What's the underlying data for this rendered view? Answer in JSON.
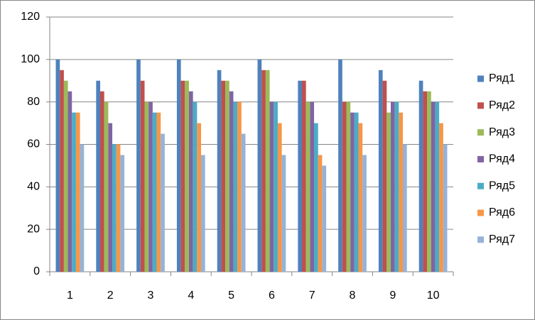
{
  "chart_data": {
    "type": "bar",
    "categories": [
      "1",
      "2",
      "3",
      "4",
      "5",
      "6",
      "7",
      "8",
      "9",
      "10"
    ],
    "series": [
      {
        "name": "Ряд1",
        "color": "#4f81bd",
        "values": [
          100,
          90,
          100,
          100,
          95,
          100,
          90,
          100,
          95,
          90
        ]
      },
      {
        "name": "Ряд2",
        "color": "#c0504d",
        "values": [
          95,
          85,
          90,
          90,
          90,
          95,
          90,
          80,
          90,
          85
        ]
      },
      {
        "name": "Ряд3",
        "color": "#9bbb59",
        "values": [
          90,
          80,
          80,
          90,
          90,
          95,
          80,
          80,
          75,
          85
        ]
      },
      {
        "name": "Ряд4",
        "color": "#8064a2",
        "values": [
          85,
          70,
          80,
          85,
          85,
          80,
          80,
          75,
          80,
          80
        ]
      },
      {
        "name": "Ряд5",
        "color": "#4bacc6",
        "values": [
          75,
          60,
          75,
          80,
          80,
          80,
          70,
          75,
          80,
          80
        ]
      },
      {
        "name": "Ряд6",
        "color": "#f79646",
        "values": [
          75,
          60,
          75,
          70,
          80,
          70,
          55,
          70,
          75,
          70
        ]
      },
      {
        "name": "Ряд7",
        "color": "#95b3d7",
        "values": [
          60,
          55,
          65,
          55,
          65,
          55,
          50,
          55,
          60,
          60
        ]
      }
    ],
    "ylim": [
      0,
      120
    ],
    "yticks": [
      0,
      20,
      40,
      60,
      80,
      100,
      120
    ],
    "grid": true,
    "legend": "right"
  }
}
